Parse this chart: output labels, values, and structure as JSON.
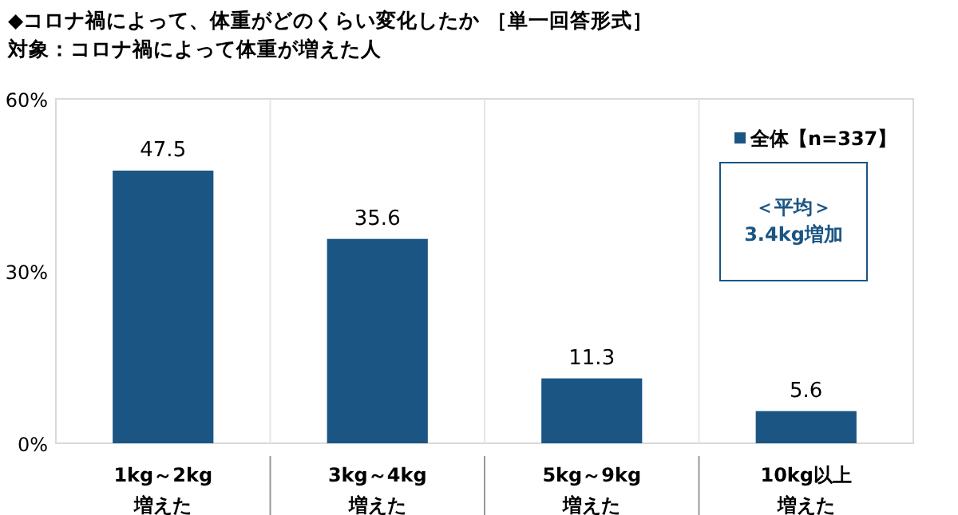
{
  "chart_data": {
    "type": "bar",
    "title": "◆コロナ禍によって、体重がどのくらい変化したか ［単一回答形式］",
    "subtitle": "対象：コロナ禍によって体重が増えた人",
    "categories": [
      "1kg～2kg増えた",
      "3kg～4kg増えた",
      "5kg～9kg増えた",
      "10kg以上増えた"
    ],
    "series": [
      {
        "name": "全体【n=337】",
        "color": "#1a5584",
        "values": [
          47.5,
          35.6,
          11.3,
          5.6
        ]
      }
    ],
    "ylim": [
      0,
      60
    ],
    "yticks": [
      {
        "value": 0,
        "label": "0%"
      },
      {
        "value": 30,
        "label": "30%"
      },
      {
        "value": 60,
        "label": "60%"
      }
    ],
    "data_labels": true,
    "legend": "top right",
    "grid": false,
    "annotations": [
      "＜平均＞\n3.4kg増加"
    ]
  }
}
